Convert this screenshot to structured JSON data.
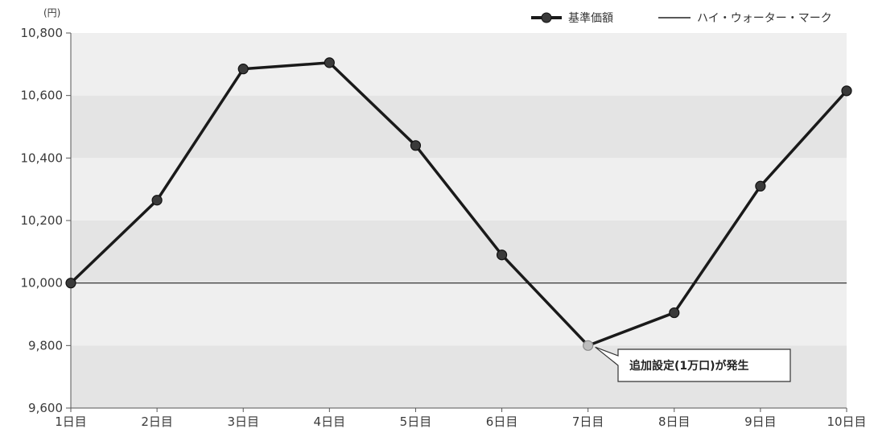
{
  "chart_data": {
    "type": "line",
    "unit_label": "(円)",
    "categories": [
      "1日目",
      "2日目",
      "3日目",
      "4日目",
      "5日目",
      "6日目",
      "7日目",
      "8日目",
      "9日目",
      "10日目"
    ],
    "series": [
      {
        "name": "基準価額",
        "values": [
          10000,
          10265,
          10685,
          10705,
          10440,
          10090,
          9800,
          9905,
          10310,
          10615
        ],
        "color": "#1a1a1a"
      }
    ],
    "reference_line": {
      "name": "ハイ・ウォーター・マーク",
      "value": 10000,
      "color": "#222222"
    },
    "highlight_point": {
      "index": 6,
      "color": "#bdbdbd"
    },
    "annotation": {
      "text": "追加設定(1万口)が発生",
      "index": 6
    },
    "ylim": [
      9600,
      10800
    ],
    "yticks": [
      9600,
      9800,
      10000,
      10200,
      10400,
      10600,
      10800
    ],
    "ytick_labels": [
      "9,600",
      "9,800",
      "10,000",
      "10,200",
      "10,400",
      "10,600",
      "10,800"
    ],
    "band_colors": [
      "#e4e4e4",
      "#efefef"
    ],
    "legend_position": "top-right",
    "grid": false
  }
}
